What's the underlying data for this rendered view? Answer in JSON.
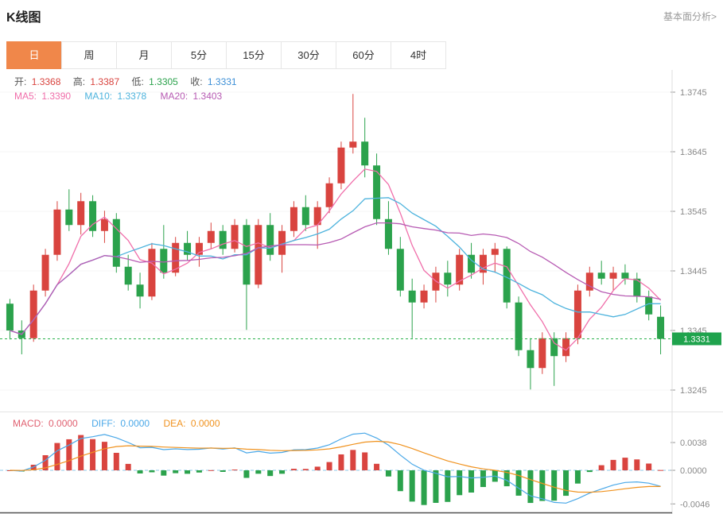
{
  "header": {
    "title": "K线图",
    "analysis_link": "基本面分析>"
  },
  "tabs": [
    {
      "label": "日",
      "active": true
    },
    {
      "label": "周",
      "active": false
    },
    {
      "label": "月",
      "active": false
    },
    {
      "label": "5分",
      "active": false
    },
    {
      "label": "15分",
      "active": false
    },
    {
      "label": "30分",
      "active": false
    },
    {
      "label": "60分",
      "active": false
    },
    {
      "label": "4时",
      "active": false
    }
  ],
  "quote": {
    "open_label": "开:",
    "open": "1.3368",
    "high_label": "高:",
    "high": "1.3387",
    "low_label": "低:",
    "low": "1.3305",
    "close_label": "收:",
    "close": "1.3331"
  },
  "ma": {
    "ma5_label": "MA5:",
    "ma5": "1.3390",
    "ma10_label": "MA10:",
    "ma10": "1.3378",
    "ma20_label": "MA20:",
    "ma20": "1.3403"
  },
  "macd": {
    "macd_label": "MACD:",
    "macd": "0.0000",
    "diff_label": "DIFF:",
    "diff": "0.0000",
    "dea_label": "DEA:",
    "dea": "0.0000"
  },
  "colors": {
    "accent_orange": "#f0874a",
    "up": "#d9443f",
    "down": "#2ba24c",
    "ma5": "#f06eaa",
    "ma10": "#4db3dd",
    "ma20": "#b75bb3",
    "open_value": "#d9443f",
    "high_value": "#d9443f",
    "low_value": "#2ba24c",
    "close_value": "#3d8fd6",
    "macd_label": "#e06070",
    "diff_label": "#4aa8e8",
    "dea_label": "#f0921e",
    "price_line": "#2bb24c",
    "price_badge_bg": "#1fa34d",
    "axis_text": "#888",
    "link_gray": "#999"
  },
  "chart_data": {
    "type": "candlestick",
    "title": "K线图",
    "period_selected": "日",
    "y_axis": {
      "ticks": [
        "1.3745",
        "1.3645",
        "1.3545",
        "1.3445",
        "1.3345",
        "1.3245"
      ],
      "min": 1.3232,
      "max": 1.3782
    },
    "current_price": 1.3331,
    "current_price_label": "1.3331",
    "ma_periods": [
      5,
      10,
      20
    ],
    "macd_axis": {
      "ticks": [
        "0.0038",
        "0.0000",
        "-0.0046"
      ],
      "min": -0.0052,
      "max": 0.0047
    },
    "candles": [
      [
        1.339,
        1.3398,
        1.333,
        1.3345
      ],
      [
        1.3345,
        1.3362,
        1.3305,
        1.3332
      ],
      [
        1.3332,
        1.3422,
        1.3326,
        1.3412
      ],
      [
        1.3412,
        1.3482,
        1.3402,
        1.3472
      ],
      [
        1.3472,
        1.3562,
        1.3462,
        1.3548
      ],
      [
        1.3548,
        1.3582,
        1.3512,
        1.3522
      ],
      [
        1.3522,
        1.3576,
        1.3506,
        1.3562
      ],
      [
        1.3562,
        1.3572,
        1.3502,
        1.3512
      ],
      [
        1.3512,
        1.3546,
        1.3492,
        1.3532
      ],
      [
        1.3532,
        1.3542,
        1.3442,
        1.3452
      ],
      [
        1.3452,
        1.3472,
        1.3412,
        1.3422
      ],
      [
        1.3422,
        1.3442,
        1.3382,
        1.3402
      ],
      [
        1.3402,
        1.3492,
        1.3396,
        1.3482
      ],
      [
        1.3482,
        1.3522,
        1.3432,
        1.3442
      ],
      [
        1.3442,
        1.3502,
        1.3436,
        1.3492
      ],
      [
        1.3492,
        1.3512,
        1.3462,
        1.3472
      ],
      [
        1.3472,
        1.3502,
        1.3452,
        1.3492
      ],
      [
        1.3492,
        1.3526,
        1.3482,
        1.3512
      ],
      [
        1.3512,
        1.3522,
        1.3472,
        1.3482
      ],
      [
        1.3482,
        1.3532,
        1.3476,
        1.3522
      ],
      [
        1.3522,
        1.3532,
        1.3346,
        1.3422
      ],
      [
        1.3422,
        1.3532,
        1.3416,
        1.3522
      ],
      [
        1.3522,
        1.3542,
        1.3462,
        1.3472
      ],
      [
        1.3472,
        1.3522,
        1.3442,
        1.3512
      ],
      [
        1.3512,
        1.3562,
        1.3502,
        1.3552
      ],
      [
        1.3552,
        1.3572,
        1.3512,
        1.3522
      ],
      [
        1.3522,
        1.3562,
        1.3482,
        1.3552
      ],
      [
        1.3552,
        1.3602,
        1.3542,
        1.3592
      ],
      [
        1.3592,
        1.3662,
        1.3582,
        1.3652
      ],
      [
        1.3652,
        1.3742,
        1.3642,
        1.3662
      ],
      [
        1.3662,
        1.3702,
        1.3602,
        1.3622
      ],
      [
        1.3622,
        1.3642,
        1.3522,
        1.3532
      ],
      [
        1.3532,
        1.3562,
        1.3472,
        1.3482
      ],
      [
        1.3482,
        1.3502,
        1.3402,
        1.3412
      ],
      [
        1.3412,
        1.3432,
        1.3332,
        1.3392
      ],
      [
        1.3392,
        1.3422,
        1.3382,
        1.3412
      ],
      [
        1.3412,
        1.3452,
        1.3392,
        1.3442
      ],
      [
        1.3442,
        1.3462,
        1.3402,
        1.3422
      ],
      [
        1.3422,
        1.3482,
        1.3412,
        1.3472
      ],
      [
        1.3472,
        1.3492,
        1.3432,
        1.3442
      ],
      [
        1.3442,
        1.3482,
        1.3422,
        1.3472
      ],
      [
        1.3472,
        1.3492,
        1.3442,
        1.3482
      ],
      [
        1.3482,
        1.3486,
        1.3382,
        1.3392
      ],
      [
        1.3392,
        1.3402,
        1.3302,
        1.3312
      ],
      [
        1.3312,
        1.3332,
        1.3246,
        1.3282
      ],
      [
        1.3282,
        1.3342,
        1.3272,
        1.3332
      ],
      [
        1.3332,
        1.3342,
        1.3252,
        1.3302
      ],
      [
        1.3302,
        1.3342,
        1.3292,
        1.3332
      ],
      [
        1.3332,
        1.3422,
        1.3322,
        1.3412
      ],
      [
        1.3412,
        1.3452,
        1.3402,
        1.3442
      ],
      [
        1.3442,
        1.3462,
        1.3422,
        1.3432
      ],
      [
        1.3432,
        1.3452,
        1.3412,
        1.3442
      ],
      [
        1.3442,
        1.3456,
        1.3422,
        1.3432
      ],
      [
        1.3432,
        1.3442,
        1.3392,
        1.3402
      ],
      [
        1.3402,
        1.3412,
        1.3362,
        1.3372
      ],
      [
        1.3368,
        1.3387,
        1.3305,
        1.3331
      ]
    ]
  }
}
